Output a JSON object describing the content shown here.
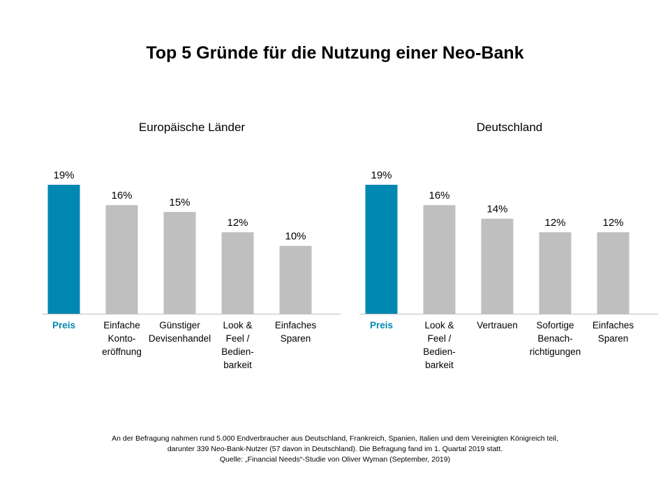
{
  "title": "Top 5 Gründe für die Nutzung einer Neo-Bank",
  "colors": {
    "highlight": "#0088b2",
    "bar": "#bfbfbf",
    "axis": "#bfbfbf",
    "text": "#000000"
  },
  "chart_data": [
    {
      "type": "bar",
      "title": "Europäische Länder",
      "categories": [
        [
          "Preis"
        ],
        [
          "Einfache",
          "Konto-",
          "eröffnung"
        ],
        [
          "Günstiger",
          "Devisenhandel"
        ],
        [
          "Look &",
          "Feel /",
          "Bedien-",
          "barkeit"
        ],
        [
          "Einfaches",
          "Sparen"
        ]
      ],
      "values": [
        19,
        16,
        15,
        12,
        10
      ],
      "value_labels": [
        "19%",
        "16%",
        "15%",
        "12%",
        "10%"
      ],
      "highlight_index": 0,
      "ylim": [
        0,
        20
      ],
      "grid": false
    },
    {
      "type": "bar",
      "title": "Deutschland",
      "categories": [
        [
          "Preis"
        ],
        [
          "Look &",
          "Feel /",
          "Bedien-",
          "barkeit"
        ],
        [
          "Vertrauen"
        ],
        [
          "Sofortige",
          "Benach-",
          "richtigungen"
        ],
        [
          "Einfaches",
          "Sparen"
        ]
      ],
      "values": [
        19,
        16,
        14,
        12,
        12
      ],
      "value_labels": [
        "19%",
        "16%",
        "14%",
        "12%",
        "12%"
      ],
      "highlight_index": 0,
      "ylim": [
        0,
        20
      ],
      "grid": false
    }
  ],
  "footnote": [
    "An der Befragung nahmen rund 5.000 Endverbraucher aus Deutschland, Frankreich, Spanien, Italien und dem Vereinigten Königreich teil,",
    "darunter 339 Neo-Bank-Nutzer (57 davon in Deutschland). Die Befragung fand im 1. Quartal 2019 statt.",
    "Quelle: „Financial Needs“-Studie von Oliver Wyman (September, 2019)"
  ]
}
